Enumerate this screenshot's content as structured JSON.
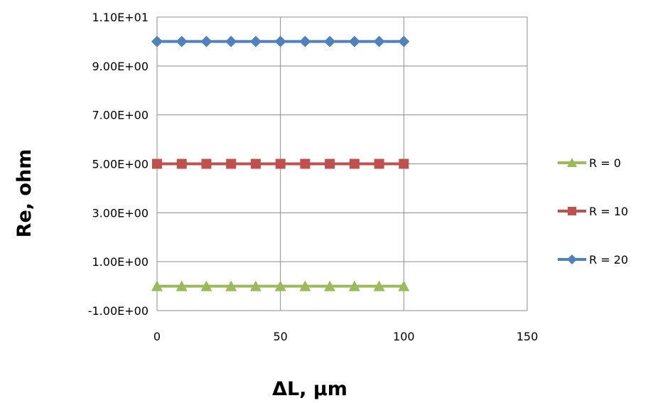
{
  "chart_data": {
    "type": "line",
    "title": "",
    "xlabel": "ΔL, µm",
    "ylabel": "Re, ohm",
    "xlim": [
      0,
      150
    ],
    "ylim": [
      -1,
      11
    ],
    "x_ticks": [
      0,
      50,
      100,
      150
    ],
    "x_tick_labels": [
      "0",
      "50",
      "100",
      "150"
    ],
    "y_ticks": [
      -1,
      1,
      3,
      5,
      7,
      9,
      11
    ],
    "y_tick_labels": [
      "-1.00E+00",
      "1.00E+00",
      "3.00E+00",
      "5.00E+00",
      "7.00E+00",
      "9.00E+00",
      "1.10E+01"
    ],
    "grid": true,
    "legend_position": "right",
    "x": [
      0,
      10,
      20,
      30,
      40,
      50,
      60,
      70,
      80,
      90,
      100
    ],
    "series": [
      {
        "name": "R = 0",
        "values": [
          0,
          0,
          0,
          0,
          0,
          0,
          0,
          0,
          0,
          0,
          0
        ],
        "color": "#9BBB59",
        "marker": "triangle"
      },
      {
        "name": "R = 10",
        "values": [
          5,
          5,
          5,
          5,
          5,
          5,
          5,
          5,
          5,
          5,
          5
        ],
        "color": "#C0504D",
        "marker": "square"
      },
      {
        "name": "R = 20",
        "values": [
          10,
          10,
          10,
          10,
          10,
          10,
          10,
          10,
          10,
          10,
          10
        ],
        "color": "#4F81BD",
        "marker": "diamond"
      }
    ]
  }
}
